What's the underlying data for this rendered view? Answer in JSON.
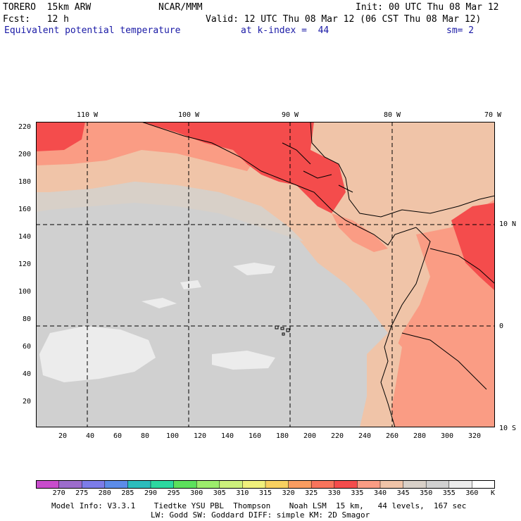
{
  "header": {
    "model": "TORERO  15km ARW",
    "org": "NCAR/MMM",
    "init": "Init: 00 UTC Thu 08 Mar 12",
    "fcst": "Fcst:   12 h",
    "valid": "Valid: 12 UTC Thu 08 Mar 12 (06 CST Thu 08 Mar 12)",
    "field": "Equivalent potential temperature",
    "level": "at k-index =  44",
    "smoothing": "sm= 2"
  },
  "axes": {
    "lon_labels": [
      "110 W",
      "100 W",
      "90 W",
      "80 W",
      "70 W"
    ],
    "lat_labels": [
      "10 N",
      "0",
      "10 S"
    ],
    "y_ticks": [
      "220",
      "200",
      "180",
      "160",
      "140",
      "120",
      "100",
      "80",
      "60",
      "40",
      "20"
    ],
    "x_ticks": [
      "20",
      "40",
      "60",
      "80",
      "100",
      "120",
      "140",
      "160",
      "180",
      "200",
      "220",
      "240",
      "260",
      "280",
      "300",
      "320"
    ]
  },
  "colorbar": {
    "labels": [
      "270",
      "275",
      "280",
      "285",
      "290",
      "295",
      "300",
      "305",
      "310",
      "315",
      "320",
      "325",
      "330",
      "335",
      "340",
      "345",
      "350",
      "355",
      "360"
    ],
    "unit": "K",
    "colors": [
      "#c84ccc",
      "#9c6ccc",
      "#7c7ce8",
      "#5c8ce8",
      "#2cbcbc",
      "#2cd8a0",
      "#5ce05c",
      "#9cec6c",
      "#cdf07c",
      "#f0f07c",
      "#f8d060",
      "#f89c60",
      "#f8745c",
      "#f44c4c",
      "#fa9c84",
      "#f0c4a8",
      "#d8d0c8",
      "#d0d0d0",
      "#ececec",
      "#ffffff"
    ]
  },
  "footer": {
    "line1": "Model Info: V3.3.1    Tiedtke YSU PBL  Thompson    Noah LSM  15 km,   44 levels,  167 sec",
    "line2": "LW: Godd SW: Goddard DIFF: simple KM: 2D Smagor"
  },
  "field_colors": {
    "c335": "#f44c4c",
    "c340": "#fa9c84",
    "c345": "#f0c4a8",
    "c350": "#d8d0c8",
    "c355": "#d0d0d0",
    "c360": "#ececec"
  }
}
